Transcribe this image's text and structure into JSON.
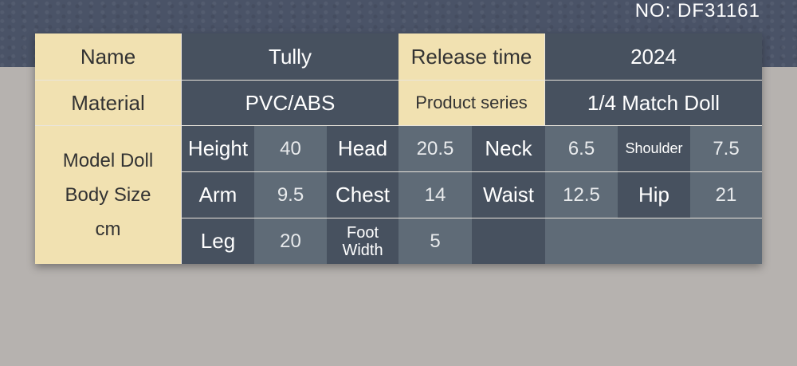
{
  "product_no": "NO:  DF31161",
  "info": {
    "name_label": "Name",
    "name_value": "Tully",
    "release_label": "Release time",
    "release_value": "2024",
    "material_label": "Material",
    "material_value": "PVC/ABS",
    "series_label": "Product series",
    "series_value": "1/4 Match Doll"
  },
  "body_size": {
    "label_line1": "Model Doll",
    "label_line2": "Body Size",
    "label_line3": "cm",
    "measurements": [
      {
        "label": "Height",
        "value": "40"
      },
      {
        "label": "Head",
        "value": "20.5"
      },
      {
        "label": "Neck",
        "value": "6.5"
      },
      {
        "label": "Shoulder",
        "value": "7.5"
      },
      {
        "label": "Arm",
        "value": "9.5"
      },
      {
        "label": "Chest",
        "value": "14"
      },
      {
        "label": "Waist",
        "value": "12.5"
      },
      {
        "label": "Hip",
        "value": "21"
      },
      {
        "label": "Leg",
        "value": "20"
      },
      {
        "label": "Foot Width",
        "value": "5"
      }
    ]
  },
  "colors": {
    "cream": "#f1e1b1",
    "dark": "#47515f",
    "light": "#5f6b77",
    "background": "#b6b2af"
  }
}
